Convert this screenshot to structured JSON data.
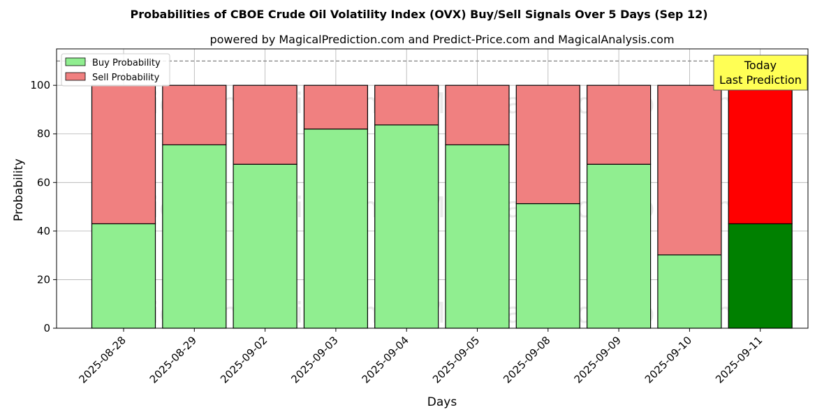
{
  "chart_data": {
    "type": "bar",
    "stacked": true,
    "title": "Probabilities of CBOE Crude Oil Volatility Index (OVX) Buy/Sell Signals Over 5 Days (Sep 12)",
    "subtitle": "powered by MagicalPrediction.com and Predict-Price.com and MagicalAnalysis.com",
    "xlabel": "Days",
    "ylabel": "Probability",
    "ylim": [
      0,
      115
    ],
    "yticks": [
      0,
      20,
      40,
      60,
      80,
      100
    ],
    "grid": true,
    "reference_line": 110,
    "categories": [
      "2025-08-28",
      "2025-08-29",
      "2025-09-02",
      "2025-09-03",
      "2025-09-04",
      "2025-09-05",
      "2025-09-08",
      "2025-09-09",
      "2025-09-10",
      "2025-09-11"
    ],
    "series": [
      {
        "name": "Buy Probability",
        "values": [
          43,
          75.5,
          67.5,
          82,
          83.7,
          75.5,
          51.3,
          67.5,
          30.2,
          43
        ]
      },
      {
        "name": "Sell Probability",
        "values": [
          57,
          24.5,
          32.5,
          18,
          16.3,
          24.5,
          48.7,
          32.5,
          69.8,
          57
        ]
      }
    ],
    "colors": {
      "buy": "#90ee90",
      "sell": "#f08080",
      "buy_highlight": "#008000",
      "sell_highlight": "#ff0000",
      "annotation_bg": "#ffff55"
    },
    "legend_position": "top-left",
    "highlight_index": 9,
    "annotation": {
      "line1": "Today",
      "line2": "Last Prediction"
    }
  },
  "watermarks": [
    "MagicalAnalysis.com",
    "MagicalPrediction.com",
    "MagicalAnalysis.com",
    "MagicalPrediction.com",
    "MagicalAnalysis.com",
    "MagicalPrediction.com"
  ]
}
